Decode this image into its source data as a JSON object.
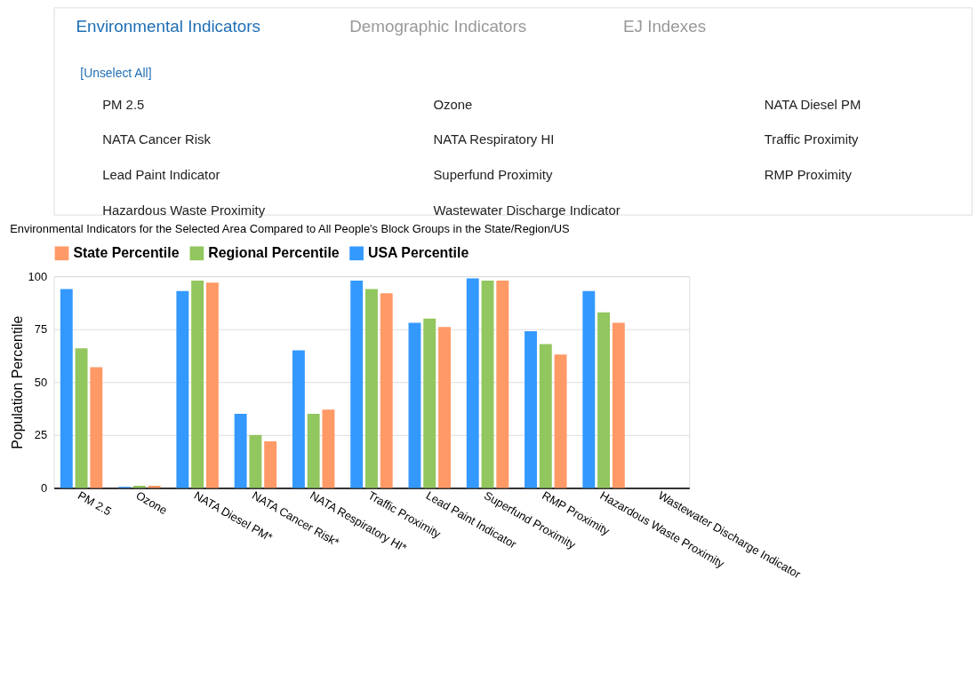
{
  "chart_data": {
    "type": "bar",
    "title": "Environmental Indicators for the Selected Area Compared to All People's Block Groups in the State/Region/US",
    "ylabel": "Population Percentile",
    "categories": [
      "PM 2.5",
      "Ozone",
      "NATA Diesel PM*",
      "NATA Cancer Risk*",
      "NATA Respiratory HI*",
      "Traffic Proximity",
      "Lead Paint Indicator",
      "Superfund Proximity",
      "RMP Proximity",
      "Hazardous Waste Proximity",
      "Wastewater Discharge Indicator"
    ],
    "series": [
      {
        "name": "USA Percentile",
        "color": "#3399ff",
        "values": [
          94,
          0.5,
          93,
          35,
          65,
          98,
          78,
          99,
          74,
          93,
          null
        ]
      },
      {
        "name": "Regional Percentile",
        "color": "#92c65e",
        "values": [
          66,
          1,
          98,
          25,
          35,
          94,
          80,
          98,
          68,
          83,
          null
        ]
      },
      {
        "name": "State Percentile",
        "color": "#ff9966",
        "values": [
          57,
          1,
          97,
          22,
          37,
          92,
          76,
          98,
          63,
          78,
          null
        ]
      }
    ],
    "ylim": [
      0,
      100
    ],
    "yticks": [
      0,
      25,
      50,
      75,
      100
    ],
    "grid": "y",
    "legend": "top",
    "annotations": [
      "Environmental Indicators",
      "Demographic Indicators",
      "EJ Indexes",
      "[Unselect All]",
      "PM 2.5",
      "Ozone",
      "NATA Diesel PM",
      "NATA Cancer Risk",
      "NATA Respiratory HI",
      "Traffic Proximity",
      "Lead Paint Indicator",
      "Superfund Proximity",
      "RMP Proximity",
      "Hazardous Waste Proximity",
      "Wastewater Discharge Indicator"
    ]
  }
}
